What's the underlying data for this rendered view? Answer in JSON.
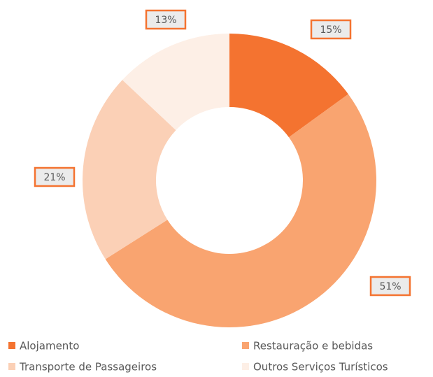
{
  "chart_data": {
    "type": "donut",
    "categories": [
      "Alojamento",
      "Restauração e bebidas",
      "Transporte de Passageiros",
      "Outros Serviços Turísticos"
    ],
    "values": [
      15,
      51,
      21,
      13
    ],
    "value_labels": [
      "15%",
      "51%",
      "21%",
      "13%"
    ],
    "colors": [
      "#f47330",
      "#f9a470",
      "#fbd0b6",
      "#fdefe6"
    ],
    "legend": "bottom"
  }
}
